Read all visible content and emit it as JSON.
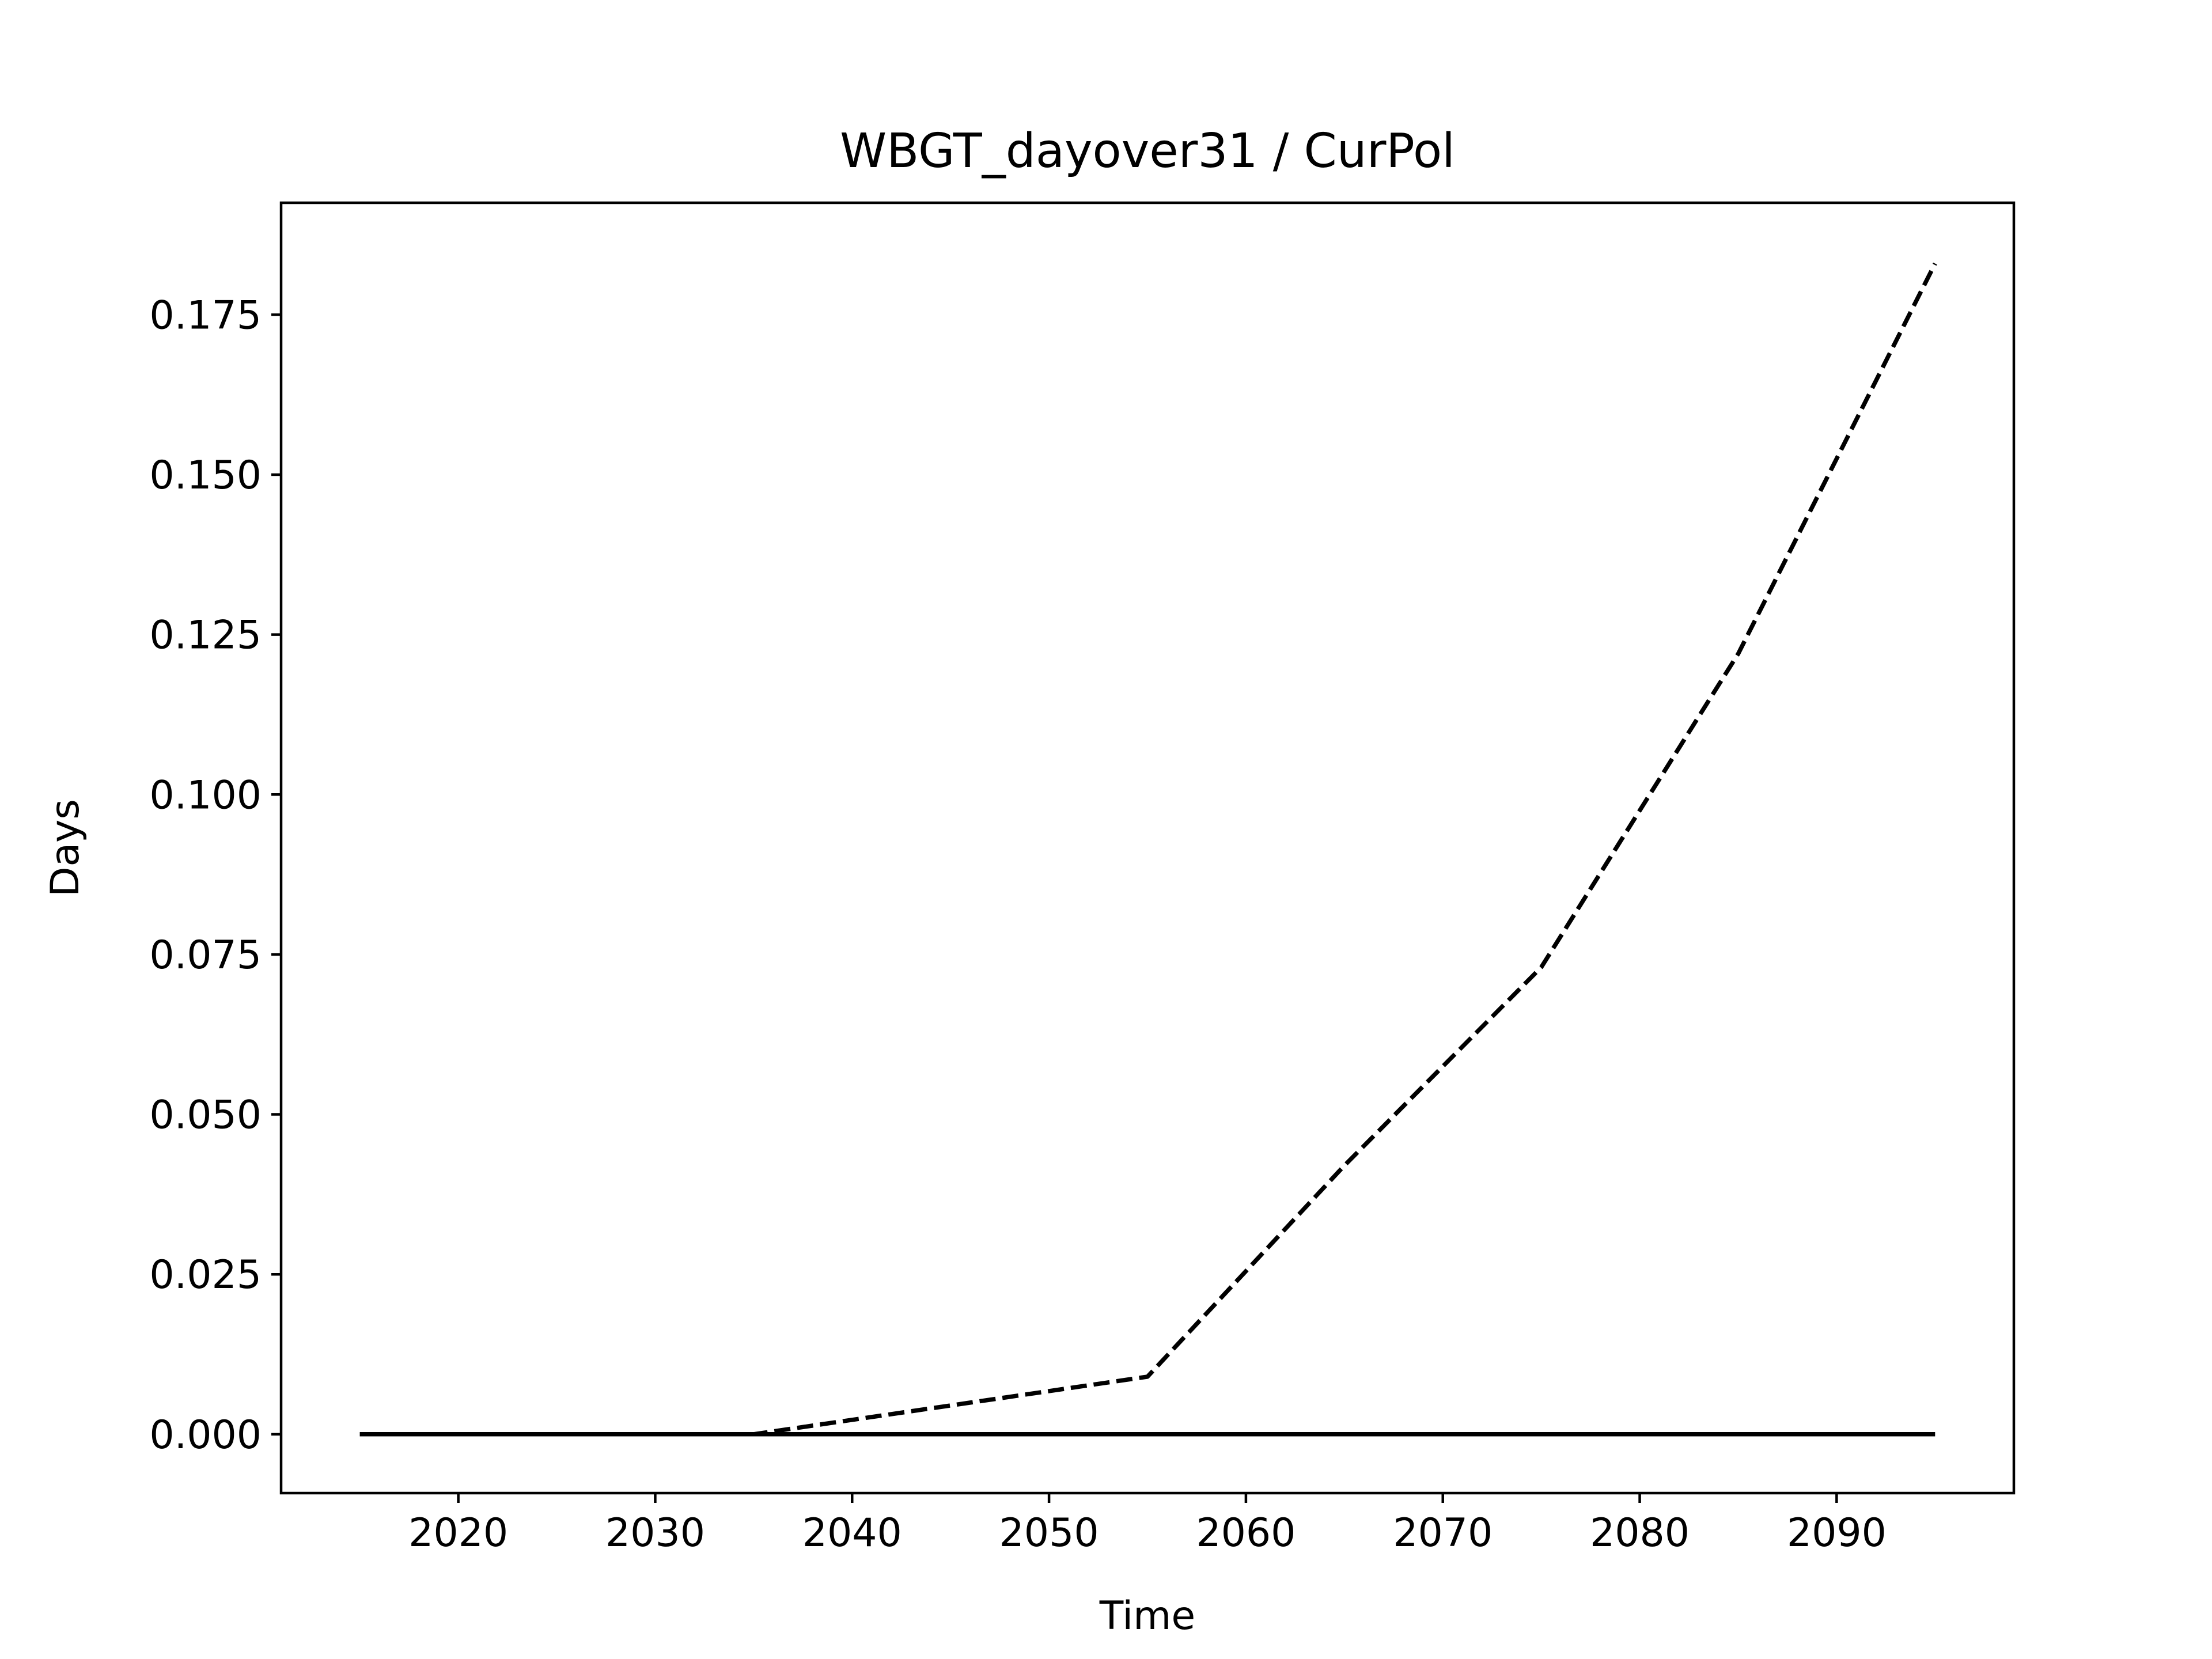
{
  "chart_data": {
    "type": "line",
    "title": "WBGT_dayover31 / CurPol",
    "xlabel": "Time",
    "ylabel": "Days",
    "xlim": [
      2011,
      2099
    ],
    "ylim": [
      -0.0092,
      0.1925
    ],
    "xticks": [
      2020,
      2030,
      2040,
      2050,
      2060,
      2070,
      2080,
      2090
    ],
    "yticks": [
      "0.000",
      "0.025",
      "0.050",
      "0.075",
      "0.100",
      "0.125",
      "0.150",
      "0.175"
    ],
    "grid": false,
    "series": [
      {
        "style": "dashed",
        "color": "#000000",
        "x": [
          2015,
          2025,
          2035,
          2045,
          2055,
          2065,
          2075,
          2085,
          2095
        ],
        "y": [
          0.0,
          0.0,
          0.0,
          0.0045,
          0.009,
          0.042,
          0.073,
          0.122,
          0.183
        ]
      },
      {
        "style": "solid",
        "color": "#000000",
        "x": [
          2015,
          2025,
          2035,
          2045,
          2055,
          2065,
          2075,
          2085,
          2095
        ],
        "y": [
          0.0,
          0.0,
          0.0,
          0.0,
          0.0,
          0.0,
          0.0,
          0.0,
          0.0
        ]
      }
    ]
  }
}
